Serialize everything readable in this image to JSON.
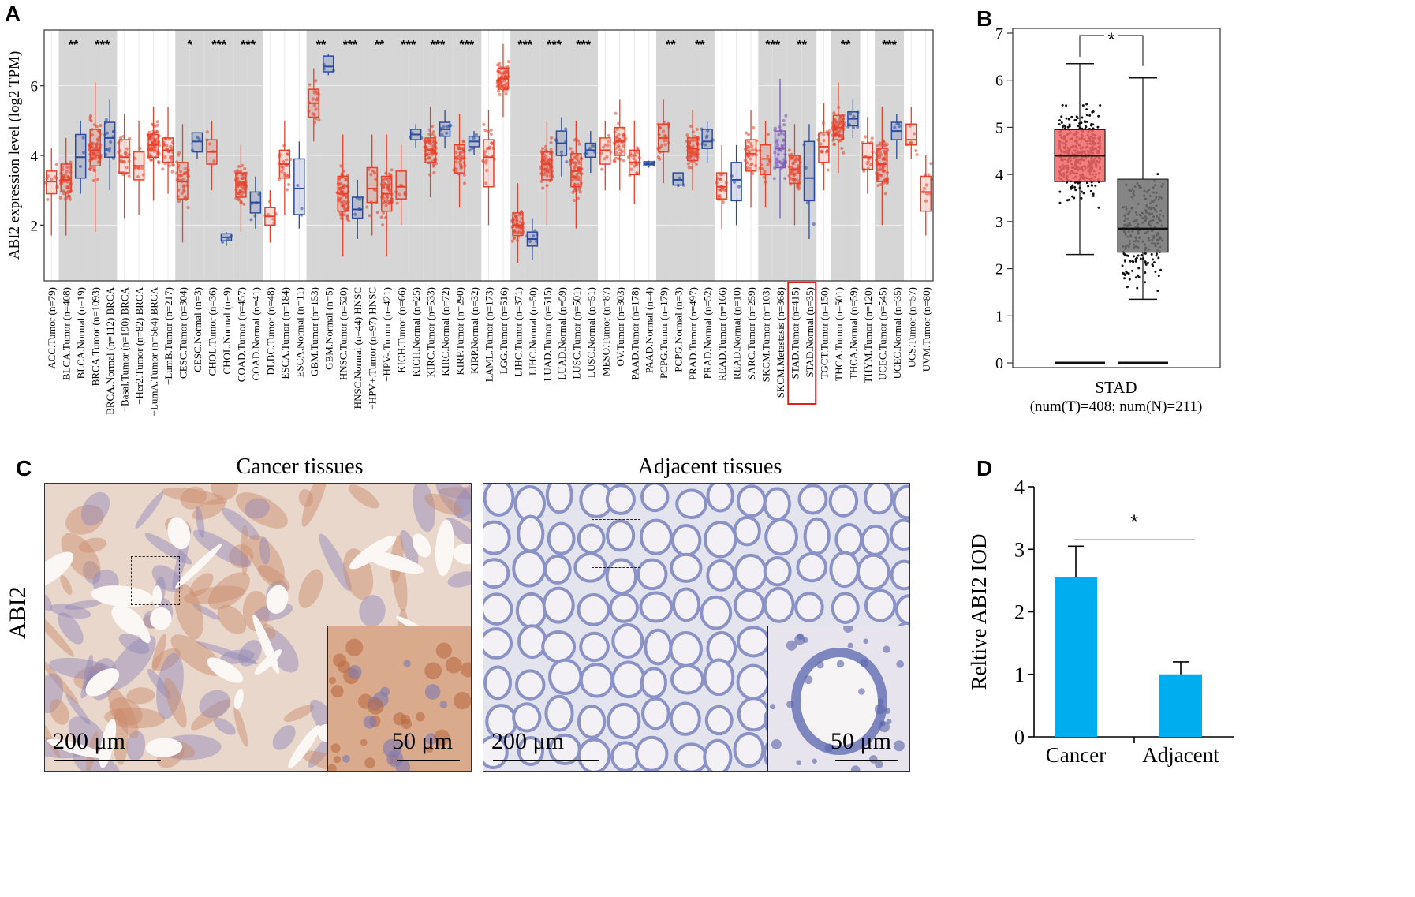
{
  "panels": {
    "A": "A",
    "B": "B",
    "C": "C",
    "D": "D"
  },
  "chart_data": [
    {
      "panel": "A",
      "type": "box",
      "ylabel": "ABI2 expression level (log2 TPM)",
      "yticks": [
        2,
        4,
        6
      ],
      "ylim": [
        0.4,
        7.6
      ],
      "highlight_categories": [
        "STAD.Tumor (n=415)",
        "STAD.Normal (n=35)"
      ],
      "groups": [
        {
          "label": "ACC.Tumor (n=79)",
          "kind": "tumor",
          "median": 3.25,
          "q1": 2.9,
          "q3": 3.55,
          "lo": 1.7,
          "hi": 4.2,
          "shade": false
        },
        {
          "label": "BLCA.Tumor (n=408)",
          "kind": "tumor",
          "median": 3.3,
          "q1": 2.95,
          "q3": 3.75,
          "lo": 1.7,
          "hi": 4.5,
          "shade": true,
          "sig": "**"
        },
        {
          "label": "BLCA.Normal (n=19)",
          "kind": "normal",
          "median": 3.95,
          "q1": 3.35,
          "q3": 4.6,
          "lo": 2.9,
          "hi": 5.0,
          "shade": true
        },
        {
          "label": "BRCA.Tumor (n=1093)",
          "kind": "tumor",
          "median": 4.15,
          "q1": 3.7,
          "q3": 4.75,
          "lo": 1.8,
          "hi": 6.1,
          "shade": true,
          "sig": "***"
        },
        {
          "label": "BRCA.Normal (n=112) BRCA",
          "kind": "normal",
          "median": 4.5,
          "q1": 3.95,
          "q3": 4.95,
          "lo": 3.0,
          "hi": 5.6,
          "shade": true
        },
        {
          "label": "−Basal.Tumor (n=190) BRCA",
          "kind": "tumor",
          "median": 3.95,
          "q1": 3.5,
          "q3": 4.45,
          "lo": 2.2,
          "hi": 5.2,
          "shade": false
        },
        {
          "label": "−Her2.Tumor (n=82) BRCA",
          "kind": "tumor",
          "median": 3.7,
          "q1": 3.3,
          "q3": 4.1,
          "lo": 2.3,
          "hi": 5.0,
          "shade": false
        },
        {
          "label": "−LumA.Tumor (n=564) BRCA",
          "kind": "tumor",
          "median": 4.3,
          "q1": 3.95,
          "q3": 4.6,
          "lo": 2.7,
          "hi": 5.4,
          "shade": false
        },
        {
          "label": "−LumB.Tumor (n=217)",
          "kind": "tumor",
          "median": 4.15,
          "q1": 3.8,
          "q3": 4.5,
          "lo": 2.9,
          "hi": 5.4,
          "shade": false
        },
        {
          "label": "CESC.Tumor (n=304)",
          "kind": "tumor",
          "median": 3.25,
          "q1": 2.75,
          "q3": 3.8,
          "lo": 1.5,
          "hi": 4.9,
          "shade": true,
          "sig": "*"
        },
        {
          "label": "CESC.Normal (n=3)",
          "kind": "normal",
          "median": 4.4,
          "q1": 4.1,
          "q3": 4.65,
          "lo": 3.9,
          "hi": 4.65,
          "shade": true
        },
        {
          "label": "CHOL.Tumor (n=36)",
          "kind": "tumor",
          "median": 4.1,
          "q1": 3.75,
          "q3": 4.45,
          "lo": 3.0,
          "hi": 5.0,
          "shade": true,
          "sig": "***"
        },
        {
          "label": "CHOL.Normal (n=9)",
          "kind": "normal",
          "median": 1.65,
          "q1": 1.55,
          "q3": 1.75,
          "lo": 1.4,
          "hi": 1.8,
          "shade": true
        },
        {
          "label": "COAD.Tumor (n=457)",
          "kind": "tumor",
          "median": 3.15,
          "q1": 2.8,
          "q3": 3.5,
          "lo": 1.8,
          "hi": 4.3,
          "shade": true,
          "sig": "***"
        },
        {
          "label": "COAD.Normal (n=41)",
          "kind": "normal",
          "median": 2.65,
          "q1": 2.35,
          "q3": 2.95,
          "lo": 1.9,
          "hi": 3.4,
          "shade": true
        },
        {
          "label": "DLBC.Tumor (n=48)",
          "kind": "tumor",
          "median": 2.25,
          "q1": 2.0,
          "q3": 2.5,
          "lo": 1.5,
          "hi": 3.0,
          "shade": false
        },
        {
          "label": "ESCA.Tumor (n=184)",
          "kind": "tumor",
          "median": 3.75,
          "q1": 3.35,
          "q3": 4.15,
          "lo": 2.3,
          "hi": 5.0,
          "shade": false
        },
        {
          "label": "ESCA.Normal (n=11)",
          "kind": "normal",
          "median": 3.05,
          "q1": 2.3,
          "q3": 3.9,
          "lo": 1.9,
          "hi": 4.4,
          "shade": false
        },
        {
          "label": "GBM.Tumor (n=153)",
          "kind": "tumor",
          "median": 5.5,
          "q1": 5.1,
          "q3": 5.9,
          "lo": 4.4,
          "hi": 6.5,
          "shade": true,
          "sig": "**"
        },
        {
          "label": "GBM.Normal (n=5)",
          "kind": "normal",
          "median": 6.55,
          "q1": 6.4,
          "q3": 6.85,
          "lo": 6.3,
          "hi": 6.9,
          "shade": true
        },
        {
          "label": "HNSC.Tumor (n=520)",
          "kind": "tumor",
          "median": 2.9,
          "q1": 2.4,
          "q3": 3.4,
          "lo": 1.1,
          "hi": 4.6,
          "shade": true,
          "sig": "***"
        },
        {
          "label": "HNSC.Normal (n=44) HNSC",
          "kind": "normal",
          "median": 2.45,
          "q1": 2.2,
          "q3": 2.8,
          "lo": 1.6,
          "hi": 3.3,
          "shade": true
        },
        {
          "label": "−HPV+.Tumor (n=97) HNSC",
          "kind": "tumor",
          "median": 3.05,
          "q1": 2.65,
          "q3": 3.65,
          "lo": 1.7,
          "hi": 4.6,
          "shade": true,
          "sig": "**"
        },
        {
          "label": "−HPV-.Tumor (n=421)",
          "kind": "tumor",
          "median": 2.9,
          "q1": 2.4,
          "q3": 3.4,
          "lo": 1.1,
          "hi": 4.6,
          "shade": true
        },
        {
          "label": "KICH.Tumor (n=66)",
          "kind": "tumor",
          "median": 3.1,
          "q1": 2.75,
          "q3": 3.55,
          "lo": 2.0,
          "hi": 4.3,
          "shade": true,
          "sig": "***"
        },
        {
          "label": "KICH.Normal (n=25)",
          "kind": "normal",
          "median": 4.6,
          "q1": 4.45,
          "q3": 4.75,
          "lo": 4.2,
          "hi": 4.9,
          "shade": true
        },
        {
          "label": "KIRC.Tumor (n=533)",
          "kind": "tumor",
          "median": 4.15,
          "q1": 3.8,
          "q3": 4.5,
          "lo": 2.8,
          "hi": 5.4,
          "shade": true,
          "sig": "***"
        },
        {
          "label": "KIRC.Normal (n=72)",
          "kind": "normal",
          "median": 4.75,
          "q1": 4.55,
          "q3": 4.95,
          "lo": 4.2,
          "hi": 5.3,
          "shade": true
        },
        {
          "label": "KIRP.Tumor (n=290)",
          "kind": "tumor",
          "median": 3.9,
          "q1": 3.5,
          "q3": 4.3,
          "lo": 2.5,
          "hi": 5.2,
          "shade": true,
          "sig": "***"
        },
        {
          "label": "KIRP.Normal (n=32)",
          "kind": "normal",
          "median": 4.4,
          "q1": 4.25,
          "q3": 4.55,
          "lo": 4.0,
          "hi": 4.7,
          "shade": true
        },
        {
          "label": "LAML.Tumor (n=173)",
          "kind": "tumor",
          "median": 3.95,
          "q1": 3.1,
          "q3": 4.45,
          "lo": 2.0,
          "hi": 5.3,
          "shade": false
        },
        {
          "label": "LGG.Tumor (n=516)",
          "kind": "tumor",
          "median": 6.2,
          "q1": 5.9,
          "q3": 6.5,
          "lo": 5.1,
          "hi": 7.2,
          "shade": false
        },
        {
          "label": "LIHC.Tumor (n=371)",
          "kind": "tumor",
          "median": 2.0,
          "q1": 1.7,
          "q3": 2.35,
          "lo": 0.9,
          "hi": 3.2,
          "shade": true,
          "sig": "***"
        },
        {
          "label": "LIHC.Normal (n=50)",
          "kind": "normal",
          "median": 1.6,
          "q1": 1.4,
          "q3": 1.8,
          "lo": 1.0,
          "hi": 2.2,
          "shade": true
        },
        {
          "label": "LUAD.Tumor (n=515)",
          "kind": "tumor",
          "median": 3.75,
          "q1": 3.3,
          "q3": 4.1,
          "lo": 2.0,
          "hi": 5.0,
          "shade": true,
          "sig": "***"
        },
        {
          "label": "LUAD.Normal (n=59)",
          "kind": "normal",
          "median": 4.35,
          "q1": 4.0,
          "q3": 4.7,
          "lo": 3.4,
          "hi": 5.1,
          "shade": true
        },
        {
          "label": "LUSC.Tumor (n=501)",
          "kind": "tumor",
          "median": 3.55,
          "q1": 3.1,
          "q3": 4.05,
          "lo": 1.9,
          "hi": 5.0,
          "shade": true,
          "sig": "***"
        },
        {
          "label": "LUSC.Normal (n=51)",
          "kind": "normal",
          "median": 4.15,
          "q1": 3.95,
          "q3": 4.35,
          "lo": 3.5,
          "hi": 4.7,
          "shade": true
        },
        {
          "label": "MESO.Tumor (n=87)",
          "kind": "tumor",
          "median": 4.15,
          "q1": 3.75,
          "q3": 4.5,
          "lo": 3.0,
          "hi": 5.0,
          "shade": false
        },
        {
          "label": "OV.Tumor (n=303)",
          "kind": "tumor",
          "median": 4.4,
          "q1": 4.0,
          "q3": 4.8,
          "lo": 3.0,
          "hi": 5.6,
          "shade": false
        },
        {
          "label": "PAAD.Tumor (n=178)",
          "kind": "tumor",
          "median": 3.8,
          "q1": 3.45,
          "q3": 4.15,
          "lo": 2.6,
          "hi": 5.0,
          "shade": false
        },
        {
          "label": "PAAD.Normal (n=4)",
          "kind": "normal",
          "median": 3.75,
          "q1": 3.7,
          "q3": 3.82,
          "lo": 3.65,
          "hi": 3.85,
          "shade": false
        },
        {
          "label": "PCPG.Tumor (n=179)",
          "kind": "tumor",
          "median": 4.5,
          "q1": 4.1,
          "q3": 4.9,
          "lo": 3.2,
          "hi": 5.6,
          "shade": true,
          "sig": "**"
        },
        {
          "label": "PCPG.Normal (n=3)",
          "kind": "normal",
          "median": 3.3,
          "q1": 3.15,
          "q3": 3.5,
          "lo": 3.1,
          "hi": 3.5,
          "shade": true
        },
        {
          "label": "PRAD.Tumor (n=497)",
          "kind": "tumor",
          "median": 4.2,
          "q1": 3.85,
          "q3": 4.5,
          "lo": 3.0,
          "hi": 5.3,
          "shade": true,
          "sig": "**"
        },
        {
          "label": "PRAD.Normal (n=52)",
          "kind": "normal",
          "median": 4.4,
          "q1": 4.2,
          "q3": 4.75,
          "lo": 3.8,
          "hi": 5.0,
          "shade": true
        },
        {
          "label": "READ.Tumor (n=166)",
          "kind": "tumor",
          "median": 3.1,
          "q1": 2.75,
          "q3": 3.5,
          "lo": 1.9,
          "hi": 4.3,
          "shade": false
        },
        {
          "label": "READ.Normal (n=10)",
          "kind": "normal",
          "median": 3.3,
          "q1": 2.7,
          "q3": 3.8,
          "lo": 2.0,
          "hi": 4.3,
          "shade": false
        },
        {
          "label": "SARC.Tumor (n=259)",
          "kind": "tumor",
          "median": 4.05,
          "q1": 3.55,
          "q3": 4.45,
          "lo": 2.5,
          "hi": 5.3,
          "shade": false
        },
        {
          "label": "SKCM.Tumor (n=103)",
          "kind": "tumor",
          "median": 3.9,
          "q1": 3.45,
          "q3": 4.3,
          "lo": 2.5,
          "hi": 5.0,
          "shade": true,
          "sig": "***"
        },
        {
          "label": "SKCM.Metastasis (n=368)",
          "kind": "metastasis",
          "median": 4.2,
          "q1": 3.65,
          "q3": 4.7,
          "lo": 2.2,
          "hi": 6.2,
          "shade": true
        },
        {
          "label": "STAD.Tumor (n=415)",
          "kind": "tumor",
          "median": 3.6,
          "q1": 3.2,
          "q3": 4.0,
          "lo": 2.0,
          "hi": 4.9,
          "shade": true,
          "sig": "**"
        },
        {
          "label": "STAD.Normal (n=35)",
          "kind": "normal",
          "median": 3.35,
          "q1": 2.7,
          "q3": 4.4,
          "lo": 1.6,
          "hi": 4.9,
          "shade": true
        },
        {
          "label": "TGCT.Tumor (n=150)",
          "kind": "tumor",
          "median": 4.25,
          "q1": 3.8,
          "q3": 4.65,
          "lo": 3.0,
          "hi": 5.5,
          "shade": false
        },
        {
          "label": "THCA.Tumor (n=501)",
          "kind": "tumor",
          "median": 4.8,
          "q1": 4.45,
          "q3": 5.15,
          "lo": 3.5,
          "hi": 6.1,
          "shade": true,
          "sig": "**"
        },
        {
          "label": "THCA.Normal (n=59)",
          "kind": "normal",
          "median": 5.05,
          "q1": 4.85,
          "q3": 5.25,
          "lo": 4.5,
          "hi": 5.6,
          "shade": true
        },
        {
          "label": "THYM.Tumor (n=120)",
          "kind": "tumor",
          "median": 3.95,
          "q1": 3.6,
          "q3": 4.35,
          "lo": 2.9,
          "hi": 5.1,
          "shade": false
        },
        {
          "label": "UCEC.Tumor (n=545)",
          "kind": "tumor",
          "median": 3.75,
          "q1": 3.25,
          "q3": 4.2,
          "lo": 2.0,
          "hi": 5.4,
          "shade": true,
          "sig": "***"
        },
        {
          "label": "UCEC.Normal (n=35)",
          "kind": "normal",
          "median": 4.7,
          "q1": 4.45,
          "q3": 4.95,
          "lo": 3.9,
          "hi": 5.2,
          "shade": true
        },
        {
          "label": "UCS.Tumor (n=57)",
          "kind": "tumor",
          "median": 4.45,
          "q1": 4.3,
          "q3": 4.9,
          "lo": 3.9,
          "hi": 5.4,
          "shade": false
        },
        {
          "label": "UVM.Tumor (n=80)",
          "kind": "tumor",
          "median": 2.95,
          "q1": 2.4,
          "q3": 3.4,
          "lo": 1.7,
          "hi": 4.0,
          "shade": false
        }
      ],
      "colors": {
        "tumor": "#e8402a",
        "normal": "#2a4aa0",
        "metastasis": "#7b5ab5",
        "shade": "#d6d6d6",
        "highlight": "#e02020"
      }
    },
    {
      "panel": "B",
      "type": "box",
      "category": "STAD",
      "subtitle": "(num(T)=408; num(N)=211)",
      "yticks": [
        0,
        1,
        2,
        3,
        4,
        5,
        6,
        7
      ],
      "ylim": [
        -0.1,
        7.1
      ],
      "significance": "*",
      "series": [
        {
          "group": "T",
          "median": 4.4,
          "q1": 3.85,
          "q3": 4.95,
          "lo": 2.3,
          "hi": 6.35,
          "color": "#f26666"
        },
        {
          "group": "N",
          "median": 2.85,
          "q1": 2.35,
          "q3": 3.9,
          "lo": 1.35,
          "hi": 6.05,
          "color": "#707070"
        }
      ]
    },
    {
      "panel": "D",
      "type": "bar",
      "categories": [
        "Cancer",
        "Adjacent"
      ],
      "values": [
        2.55,
        1.0
      ],
      "errors": [
        0.5,
        0.2
      ],
      "ylabel": "Reltive ABI2 IOD",
      "yticks": [
        0,
        1,
        2,
        3,
        4
      ],
      "ylim": [
        0,
        4
      ],
      "significance": "*",
      "color": "#00aeef"
    }
  ],
  "panel_c": {
    "title_left": "Cancer tissues",
    "title_right": "Adjacent tissues",
    "row_label": "ABI2",
    "scale_large": "200 μm",
    "scale_small": "50 μm"
  }
}
